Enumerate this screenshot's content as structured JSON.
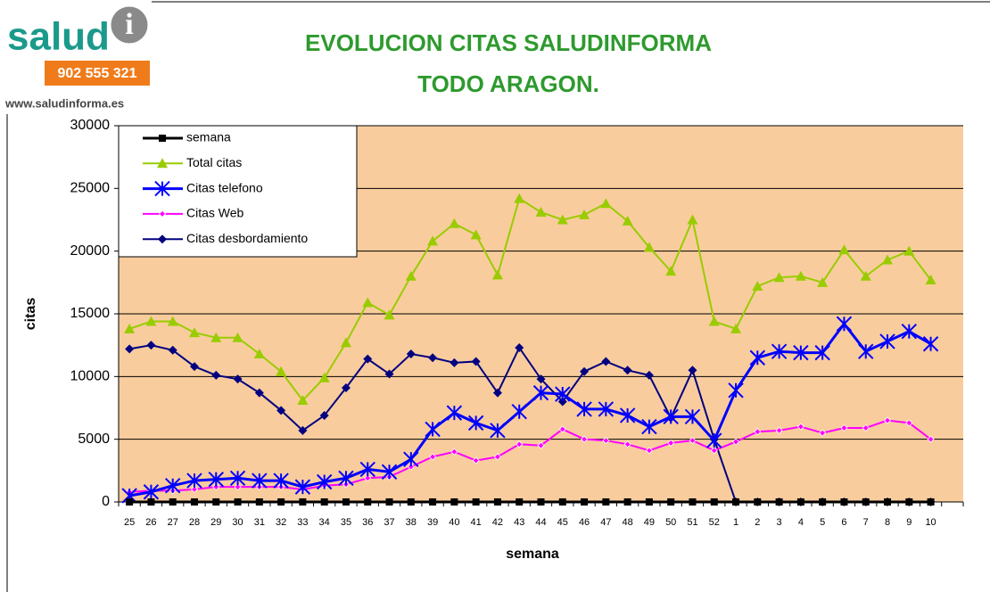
{
  "logo": {
    "brand": "salud",
    "badge": "i",
    "phone": "902 555 321",
    "url": "www.saludinforma.es"
  },
  "chart_data": {
    "type": "line",
    "title": "EVOLUCION CITAS SALUDINFORMA",
    "subtitle": "TODO ARAGON.",
    "x_label": "semana",
    "y_label": "citas",
    "categories": [
      "25",
      "26",
      "27",
      "28",
      "29",
      "30",
      "31",
      "32",
      "33",
      "34",
      "35",
      "36",
      "37",
      "38",
      "39",
      "40",
      "41",
      "42",
      "43",
      "44",
      "45",
      "46",
      "47",
      "48",
      "49",
      "50",
      "51",
      "52",
      "1",
      "2",
      "3",
      "4",
      "5",
      "6",
      "7",
      "8",
      "9",
      "10",
      null
    ],
    "ylim": [
      0,
      30000
    ],
    "yticks": [
      0,
      5000,
      10000,
      15000,
      20000,
      25000,
      30000
    ],
    "grid": true,
    "legend": "top-left",
    "background": "#f9cc9d",
    "series": [
      {
        "name": "semana",
        "color": "#000000",
        "marker": "square",
        "values": [
          0,
          0,
          0,
          0,
          0,
          0,
          0,
          0,
          0,
          0,
          0,
          0,
          0,
          0,
          0,
          0,
          0,
          0,
          0,
          0,
          0,
          0,
          0,
          0,
          0,
          0,
          0,
          0,
          0,
          0,
          0,
          0,
          0,
          0,
          0,
          0,
          0,
          0,
          null
        ]
      },
      {
        "name": "Total citas",
        "color": "#99cc00",
        "marker": "triangle",
        "values": [
          13800,
          14400,
          14400,
          13500,
          13100,
          13100,
          11800,
          10400,
          8100,
          9900,
          12700,
          15900,
          14900,
          18000,
          20800,
          22200,
          21300,
          18100,
          24200,
          23100,
          22500,
          22900,
          23800,
          22400,
          20300,
          18400,
          22500,
          14400,
          13800,
          17200,
          17900,
          18000,
          17500,
          20100,
          18000,
          19300,
          20000,
          17700,
          null
        ]
      },
      {
        "name": "Citas telefono",
        "color": "#0000ff",
        "marker": "asterisk",
        "values": [
          500,
          800,
          1300,
          1700,
          1800,
          1900,
          1700,
          1700,
          1200,
          1600,
          1900,
          2600,
          2400,
          3400,
          5800,
          7100,
          6300,
          5700,
          7200,
          8700,
          8600,
          7400,
          7400,
          6900,
          6000,
          6800,
          6800,
          4900,
          8900,
          11500,
          12000,
          11900,
          11900,
          14200,
          12000,
          12800,
          13600,
          12600,
          null
        ]
      },
      {
        "name": "Citas Web",
        "color": "#ff00ff",
        "marker": "small-diamond",
        "values": [
          800,
          900,
          900,
          1000,
          1200,
          1200,
          1200,
          1200,
          1000,
          1300,
          1400,
          1900,
          2000,
          2800,
          3600,
          4000,
          3300,
          3600,
          4600,
          4500,
          5800,
          5000,
          4900,
          4600,
          4100,
          4700,
          4900,
          4100,
          4800,
          5600,
          5700,
          6000,
          5500,
          5900,
          5900,
          6500,
          6300,
          5000,
          null
        ]
      },
      {
        "name": "Citas desbordamiento",
        "color": "#000080",
        "marker": "diamond",
        "values": [
          12200,
          12500,
          12100,
          10800,
          10100,
          9800,
          8700,
          7300,
          5700,
          6900,
          9100,
          11400,
          10200,
          11800,
          11500,
          11100,
          11200,
          8700,
          12300,
          9800,
          8000,
          10400,
          11200,
          10500,
          10100,
          6700,
          10500,
          5000,
          0,
          0,
          0,
          0,
          0,
          0,
          0,
          0,
          0,
          0,
          null
        ]
      }
    ]
  }
}
